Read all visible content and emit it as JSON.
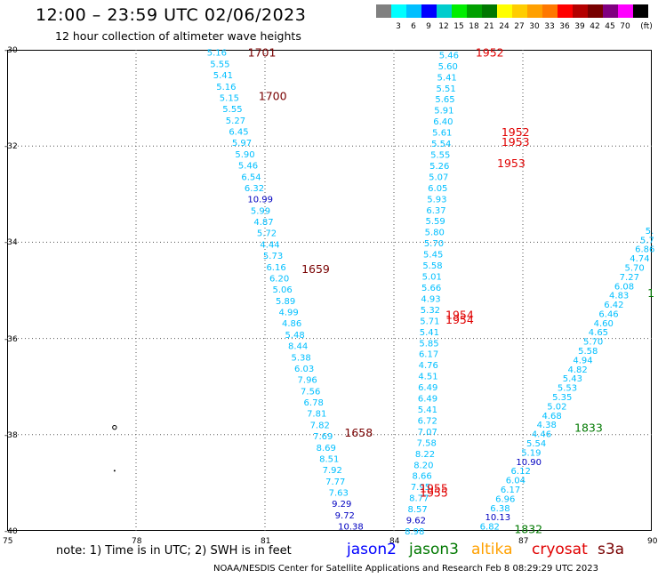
{
  "header": {
    "title": "12:00 – 23:59 UTC 02/06/2023",
    "subtitle": "12 hour collection of altimeter wave heights"
  },
  "colorbar": {
    "unit": "(ft)",
    "labels": [
      "3",
      "6",
      "9",
      "12",
      "15",
      "18",
      "21",
      "24",
      "27",
      "30",
      "33",
      "36",
      "39",
      "42",
      "45",
      "70"
    ],
    "colors": [
      "#808080",
      "#00ffff",
      "#00bfff",
      "#0000ff",
      "#00cdcd",
      "#00ee00",
      "#00a000",
      "#007800",
      "#ffff00",
      "#ffcd00",
      "#ffa000",
      "#ff7800",
      "#ff0000",
      "#b40000",
      "#780000",
      "#800080",
      "#ff00ff",
      "#000000"
    ]
  },
  "axes": {
    "y_labels": [
      "-30",
      "-32",
      "-34",
      "-36",
      "-38",
      "-40"
    ],
    "x_labels": [
      "75",
      "78",
      "81",
      "84",
      "87",
      "90"
    ]
  },
  "map": {
    "pass_times": [
      {
        "text": "1701",
        "lon": 80.6,
        "lat": -30.05,
        "color": "#780000"
      },
      {
        "text": "1700",
        "lon": 80.85,
        "lat": -30.95,
        "color": "#780000"
      },
      {
        "text": "1659",
        "lon": 81.85,
        "lat": -34.55,
        "color": "#780000"
      },
      {
        "text": "1658",
        "lon": 82.85,
        "lat": -37.95,
        "color": "#780000"
      },
      {
        "text": "1952",
        "lon": 85.9,
        "lat": -30.05,
        "color": "#e00000"
      },
      {
        "text": "1952",
        "lon": 86.5,
        "lat": -31.7,
        "color": "#e00000"
      },
      {
        "text": "1953",
        "lon": 86.5,
        "lat": -31.9,
        "color": "#e00000"
      },
      {
        "text": "1953",
        "lon": 86.4,
        "lat": -32.35,
        "color": "#e00000"
      },
      {
        "text": "1954",
        "lon": 85.2,
        "lat": -35.5,
        "color": "#e00000"
      },
      {
        "text": "1954",
        "lon": 85.2,
        "lat": -35.6,
        "color": "#e00000"
      },
      {
        "text": "1955",
        "lon": 84.6,
        "lat": -39.1,
        "color": "#e00000"
      },
      {
        "text": "1955",
        "lon": 84.6,
        "lat": -39.2,
        "color": "#e00000"
      },
      {
        "text": "1833",
        "lon": 88.2,
        "lat": -37.85,
        "color": "#007800"
      },
      {
        "text": "1832",
        "lon": 86.8,
        "lat": -39.95,
        "color": "#007800"
      },
      {
        "text": "1",
        "lon": 89.9,
        "lat": -35.05,
        "color": "#007800"
      }
    ],
    "track_west": [
      "5.16",
      "5.55",
      "5.41",
      "5.16",
      "5.15",
      "5.55",
      "5.27",
      "6.45",
      "5.97",
      "5.90",
      "5.46",
      "6.54",
      "6.32",
      "10.99",
      "5.99",
      "4.87",
      "5.72",
      "4.44",
      "5.73",
      "6.16",
      "6.20",
      "5.06",
      "5.89",
      "4.99",
      "4.86",
      "5.48",
      "8.44",
      "5.38",
      "6.03",
      "7.96",
      "7.56",
      "6.78",
      "7.81",
      "7.82",
      "7.69",
      "8.69",
      "8.51",
      "7.92",
      "7.77",
      "7.63",
      "9.29",
      "9.72",
      "10.38"
    ],
    "track_middle": [
      "5.46",
      "5.60",
      "5.41",
      "5.51",
      "5.65",
      "5.91",
      "6.40",
      "5.61",
      "5.54",
      "5.55",
      "5.26",
      "5.07",
      "6.05",
      "5.93",
      "6.37",
      "5.59",
      "5.80",
      "5.70",
      "5.45",
      "5.58",
      "5.01",
      "5.66",
      "4.93",
      "5.32",
      "5.71",
      "5.41",
      "5.85",
      "6.17",
      "4.76",
      "4.51",
      "6.49",
      "6.49",
      "5.41",
      "6.72",
      "7.07",
      "7.58",
      "8.22",
      "8.20",
      "8.66",
      "7.95",
      "8.77",
      "8.57",
      "9.62",
      "8.98"
    ],
    "track_east": [
      "5.",
      "5.7",
      "6.86",
      "4.74",
      "5.70",
      "7.27",
      "6.08",
      "4.83",
      "6.42",
      "6.46",
      "4.60",
      "4.65",
      "5.70",
      "5.58",
      "4.94",
      "4.82",
      "5.43",
      "5.53",
      "5.35",
      "5.02",
      "4.68",
      "4.38",
      "4.46",
      "5.54",
      "5.19",
      "10.90",
      "6.12",
      "6.04",
      "6.17",
      "6.96",
      "6.38",
      "10.13",
      "6.82"
    ],
    "track_east_colors": [
      "#00bfff",
      "#00bfff",
      "#00bfff",
      "#00bfff",
      "#00bfff",
      "#00bfff",
      "#00bfff",
      "#00bfff",
      "#00bfff",
      "#00bfff",
      "#00bfff",
      "#00bfff",
      "#00bfff",
      "#00bfff",
      "#00bfff",
      "#00bfff",
      "#00bfff",
      "#00bfff",
      "#00bfff",
      "#00bfff",
      "#00bfff",
      "#00bfff",
      "#00bfff",
      "#00bfff",
      "#00bfff",
      "#0000c0",
      "#00bfff",
      "#00bfff",
      "#00bfff",
      "#00bfff",
      "#00bfff",
      "#0000c0",
      "#00bfff"
    ]
  },
  "footer": {
    "note": "note:  1) Time is in UTC;  2) SWH is in feet",
    "satellites": [
      {
        "name": "jason2",
        "color": "#0000ff"
      },
      {
        "name": "jason3",
        "color": "#007800"
      },
      {
        "name": "altika",
        "color": "#ffa000"
      },
      {
        "name": "cryosat",
        "color": "#e00000"
      },
      {
        "name": "s3a",
        "color": "#780000"
      }
    ],
    "credit": "NOAA/NESDIS Center for Satellite Applications and Research    Feb  8 08:29:29 UTC 2023"
  }
}
